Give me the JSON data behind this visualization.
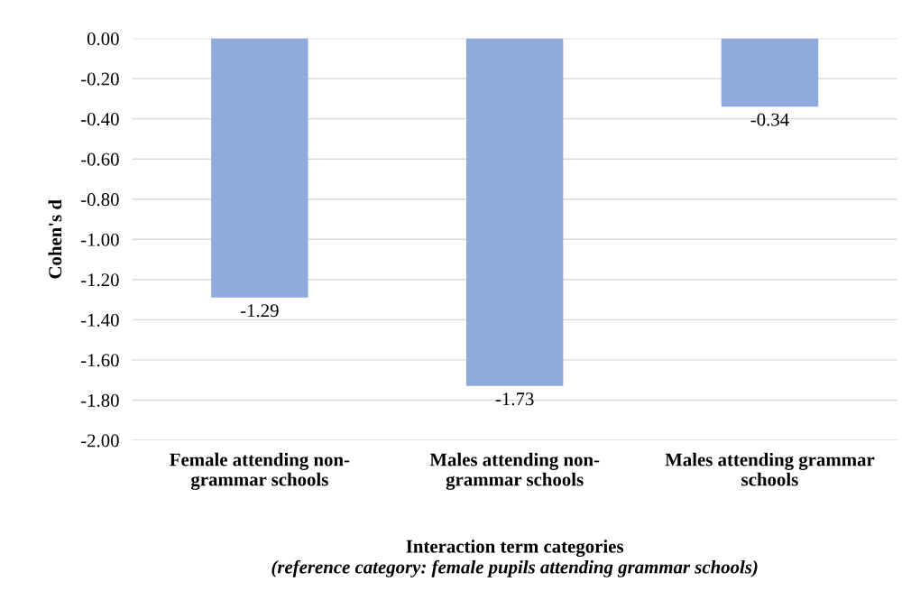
{
  "chart_data": {
    "type": "bar",
    "categories": [
      "Female attending non-\ngrammar schools",
      "Males attending non-\ngrammar schools",
      "Males attending grammar\nschools"
    ],
    "values": [
      -1.29,
      -1.73,
      -0.34
    ],
    "color": "#8faadc",
    "data_labels": true,
    "ylabel": "Cohen's d",
    "xlabel": "Interaction term categories",
    "annotations": [
      "(reference category: female pupils attending grammar schools)"
    ],
    "ylim": [
      -2.0,
      0.0
    ],
    "yticks": [
      {
        "value": 0.0,
        "label": "0.00"
      },
      {
        "value": -0.2,
        "label": "-0.20"
      },
      {
        "value": -0.4,
        "label": "-0.40"
      },
      {
        "value": -0.6,
        "label": "-0.60"
      },
      {
        "value": -0.8,
        "label": "-0.80"
      },
      {
        "value": -1.0,
        "label": "-1.00"
      },
      {
        "value": -1.2,
        "label": "-1.20"
      },
      {
        "value": -1.4,
        "label": "-1.40"
      },
      {
        "value": -1.6,
        "label": "-1.60"
      },
      {
        "value": -1.8,
        "label": "-1.80"
      },
      {
        "value": -2.0,
        "label": "-2.00"
      }
    ],
    "grid": "y"
  }
}
